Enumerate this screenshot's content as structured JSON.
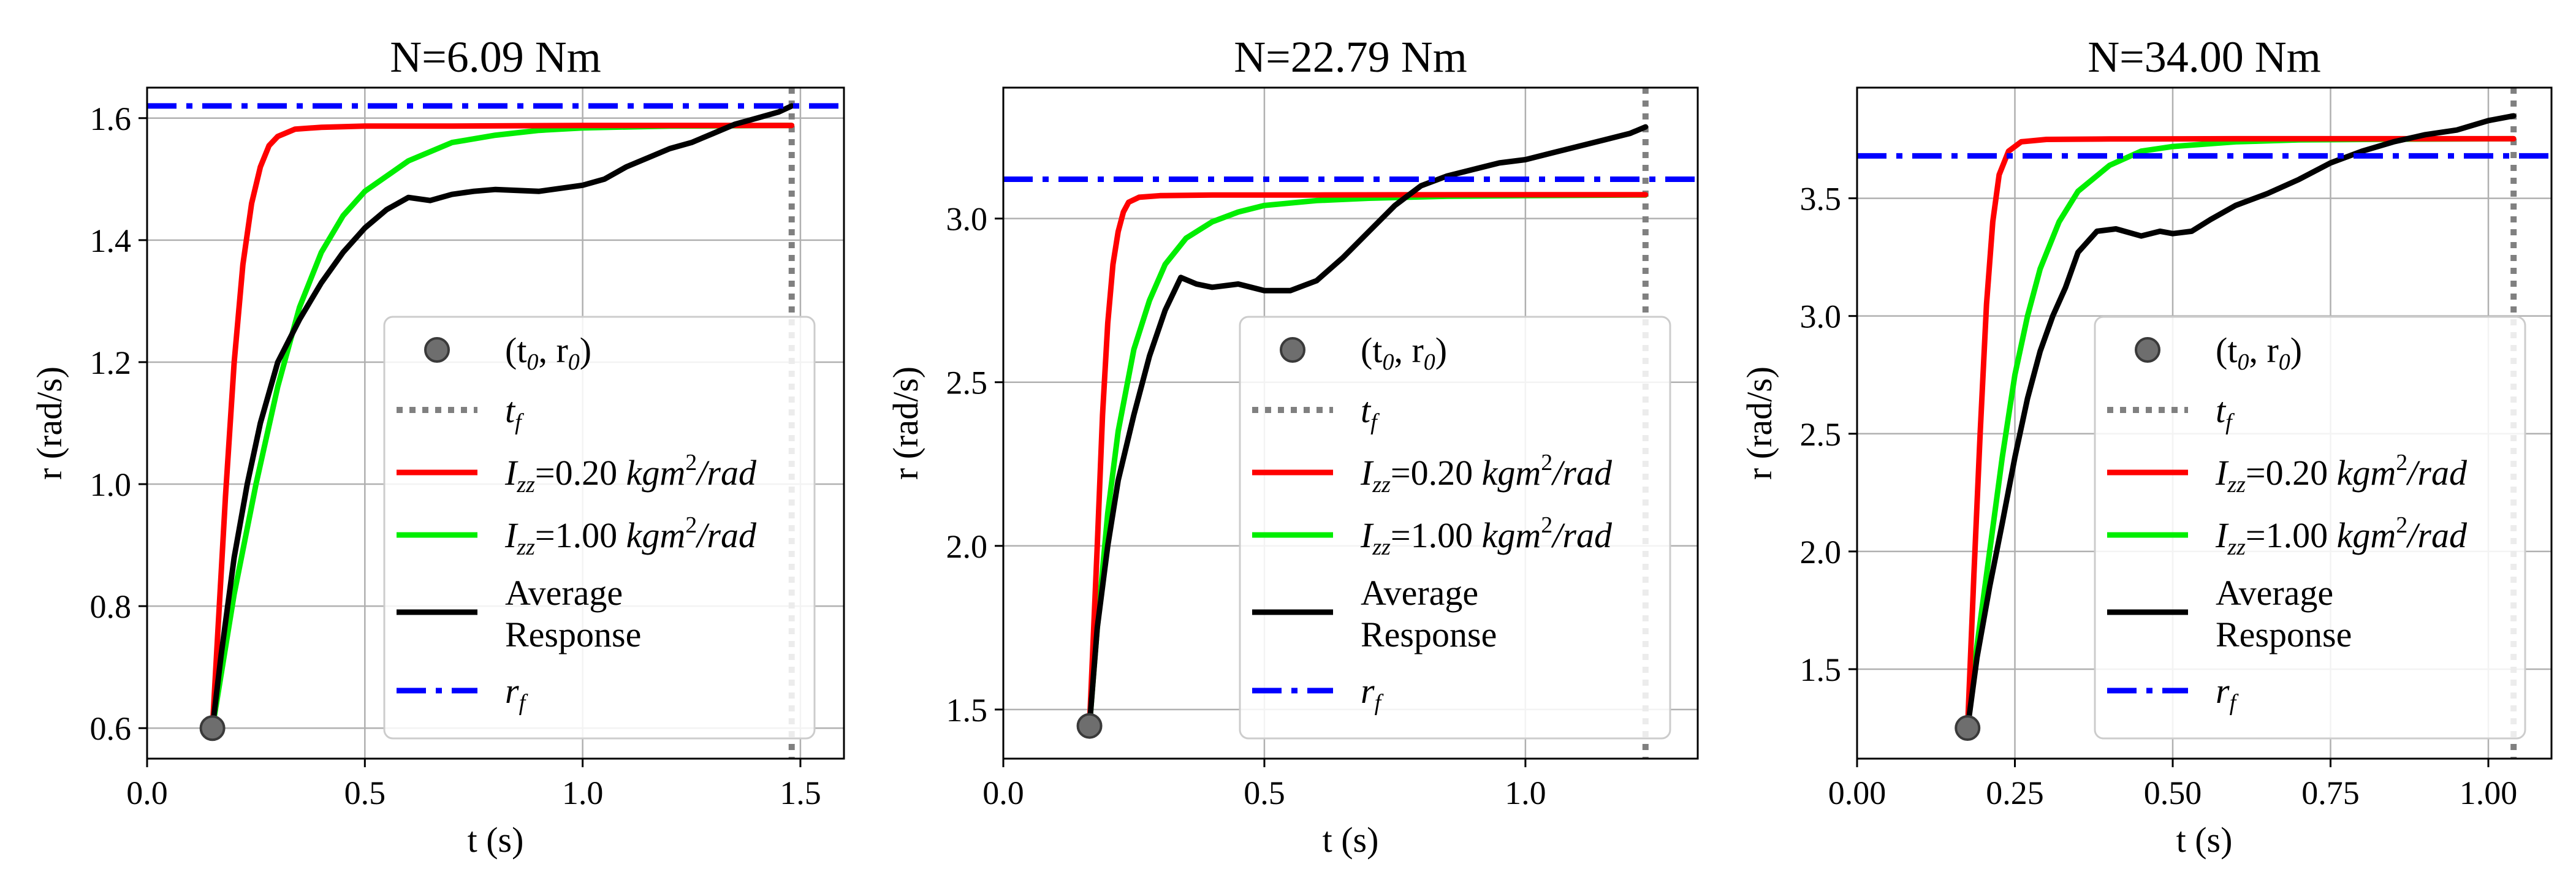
{
  "chart_data": [
    {
      "type": "line",
      "title": "N=6.09 Nm",
      "xlabel": "t (s)",
      "ylabel": "r (rad/s)",
      "xlim": [
        0.0,
        1.6
      ],
      "ylim": [
        0.55,
        1.65
      ],
      "xticks": [
        0.0,
        0.5,
        1.0,
        1.5
      ],
      "xtick_labels": [
        "0.0",
        "0.5",
        "1.0",
        "1.5"
      ],
      "yticks": [
        0.6,
        0.8,
        1.0,
        1.2,
        1.4,
        1.6
      ],
      "ytick_labels": [
        "0.6",
        "0.8",
        "1.0",
        "1.2",
        "1.4",
        "1.6"
      ],
      "grid": true,
      "legend_position": "lower-right",
      "t0": 0.15,
      "r0": 0.6,
      "tf": 1.48,
      "rf": 1.62,
      "series": [
        {
          "name": "Izz=0.20 kgm2/rad",
          "color": "#ff0000",
          "x": [
            0.15,
            0.18,
            0.2,
            0.22,
            0.24,
            0.26,
            0.28,
            0.3,
            0.34,
            0.4,
            0.5,
            0.7,
            1.0,
            1.48
          ],
          "y": [
            0.6,
            0.98,
            1.2,
            1.36,
            1.46,
            1.52,
            1.555,
            1.57,
            1.582,
            1.585,
            1.587,
            1.587,
            1.588,
            1.588
          ]
        },
        {
          "name": "Izz=1.00 kgm2/rad",
          "color": "#00ee00",
          "x": [
            0.15,
            0.2,
            0.25,
            0.3,
            0.35,
            0.4,
            0.45,
            0.5,
            0.6,
            0.7,
            0.8,
            0.9,
            1.0,
            1.2,
            1.48
          ],
          "y": [
            0.6,
            0.82,
            1.0,
            1.16,
            1.29,
            1.38,
            1.44,
            1.48,
            1.53,
            1.56,
            1.572,
            1.58,
            1.584,
            1.587,
            1.588
          ]
        },
        {
          "name": "Average Response",
          "color": "#000000",
          "x": [
            0.15,
            0.17,
            0.2,
            0.23,
            0.26,
            0.3,
            0.35,
            0.4,
            0.45,
            0.5,
            0.55,
            0.6,
            0.65,
            0.7,
            0.75,
            0.8,
            0.9,
            1.0,
            1.05,
            1.1,
            1.15,
            1.2,
            1.25,
            1.3,
            1.35,
            1.4,
            1.45,
            1.48
          ],
          "y": [
            0.6,
            0.72,
            0.88,
            1.0,
            1.1,
            1.2,
            1.27,
            1.33,
            1.38,
            1.42,
            1.45,
            1.47,
            1.465,
            1.475,
            1.48,
            1.483,
            1.48,
            1.49,
            1.5,
            1.52,
            1.535,
            1.55,
            1.56,
            1.575,
            1.59,
            1.6,
            1.61,
            1.62
          ]
        }
      ],
      "hline_color": "#0000ff",
      "marker_color": "#6e6e6e"
    },
    {
      "type": "line",
      "title": "N=22.79 Nm",
      "xlabel": "t (s)",
      "ylabel": "r (rad/s)",
      "xlim": [
        0.0,
        1.33
      ],
      "ylim": [
        1.35,
        3.4
      ],
      "xticks": [
        0.0,
        0.5,
        1.0
      ],
      "xtick_labels": [
        "0.0",
        "0.5",
        "1.0"
      ],
      "yticks": [
        1.5,
        2.0,
        2.5,
        3.0
      ],
      "ytick_labels": [
        "1.5",
        "2.0",
        "2.5",
        "3.0"
      ],
      "grid": true,
      "legend_position": "lower-right",
      "t0": 0.165,
      "r0": 1.45,
      "tf": 1.23,
      "rf": 3.12,
      "series": [
        {
          "name": "Izz=0.20 kgm2/rad",
          "color": "#ff0000",
          "x": [
            0.165,
            0.18,
            0.19,
            0.2,
            0.21,
            0.22,
            0.23,
            0.24,
            0.26,
            0.3,
            0.4,
            0.6,
            0.9,
            1.23
          ],
          "y": [
            1.45,
            2.0,
            2.4,
            2.68,
            2.86,
            2.96,
            3.02,
            3.05,
            3.065,
            3.07,
            3.072,
            3.072,
            3.073,
            3.073
          ]
        },
        {
          "name": "Izz=1.00 kgm2/rad",
          "color": "#00ee00",
          "x": [
            0.165,
            0.18,
            0.2,
            0.22,
            0.25,
            0.28,
            0.31,
            0.35,
            0.4,
            0.45,
            0.5,
            0.6,
            0.7,
            0.85,
            1.0,
            1.23
          ],
          "y": [
            1.45,
            1.75,
            2.1,
            2.35,
            2.6,
            2.75,
            2.86,
            2.94,
            2.99,
            3.02,
            3.04,
            3.055,
            3.062,
            3.068,
            3.07,
            3.072
          ]
        },
        {
          "name": "Average Response",
          "color": "#000000",
          "x": [
            0.165,
            0.18,
            0.2,
            0.22,
            0.25,
            0.28,
            0.31,
            0.34,
            0.37,
            0.4,
            0.45,
            0.5,
            0.55,
            0.6,
            0.65,
            0.7,
            0.75,
            0.8,
            0.85,
            0.9,
            0.95,
            1.0,
            1.05,
            1.1,
            1.15,
            1.2,
            1.23
          ],
          "y": [
            1.45,
            1.75,
            2.0,
            2.2,
            2.4,
            2.58,
            2.72,
            2.82,
            2.8,
            2.79,
            2.8,
            2.78,
            2.78,
            2.81,
            2.88,
            2.96,
            3.04,
            3.1,
            3.13,
            3.15,
            3.17,
            3.18,
            3.2,
            3.22,
            3.24,
            3.26,
            3.28
          ]
        }
      ],
      "hline_color": "#0000ff",
      "marker_color": "#6e6e6e"
    },
    {
      "type": "line",
      "title": "N=34.00 Nm",
      "xlabel": "t (s)",
      "ylabel": "r (rad/s)",
      "xlim": [
        0.0,
        1.1
      ],
      "ylim": [
        1.12,
        3.97
      ],
      "xticks": [
        0.0,
        0.25,
        0.5,
        0.75,
        1.0
      ],
      "xtick_labels": [
        "0.00",
        "0.25",
        "0.50",
        "0.75",
        "1.00"
      ],
      "yticks": [
        1.5,
        2.0,
        2.5,
        3.0,
        3.5
      ],
      "ytick_labels": [
        "1.5",
        "2.0",
        "2.5",
        "3.0",
        "3.5"
      ],
      "grid": true,
      "legend_position": "lower-right",
      "t0": 0.175,
      "r0": 1.25,
      "tf": 1.04,
      "rf": 3.68,
      "series": [
        {
          "name": "Izz=0.20 kgm2/rad",
          "color": "#ff0000",
          "x": [
            0.175,
            0.185,
            0.195,
            0.205,
            0.215,
            0.225,
            0.24,
            0.26,
            0.3,
            0.4,
            0.6,
            0.8,
            1.04
          ],
          "y": [
            1.25,
            1.9,
            2.5,
            3.05,
            3.4,
            3.6,
            3.7,
            3.74,
            3.75,
            3.752,
            3.753,
            3.753,
            3.753
          ]
        },
        {
          "name": "Izz=1.00 kgm2/rad",
          "color": "#00ee00",
          "x": [
            0.175,
            0.19,
            0.21,
            0.23,
            0.25,
            0.27,
            0.29,
            0.32,
            0.35,
            0.4,
            0.45,
            0.5,
            0.6,
            0.7,
            0.85,
            1.04
          ],
          "y": [
            1.25,
            1.6,
            2.0,
            2.4,
            2.75,
            3.0,
            3.2,
            3.4,
            3.53,
            3.64,
            3.7,
            3.72,
            3.74,
            3.748,
            3.751,
            3.753
          ]
        },
        {
          "name": "Average Response",
          "color": "#000000",
          "x": [
            0.175,
            0.19,
            0.21,
            0.23,
            0.25,
            0.27,
            0.29,
            0.31,
            0.33,
            0.35,
            0.38,
            0.41,
            0.45,
            0.48,
            0.5,
            0.53,
            0.56,
            0.6,
            0.65,
            0.7,
            0.75,
            0.8,
            0.85,
            0.9,
            0.95,
            1.0,
            1.04
          ],
          "y": [
            1.25,
            1.55,
            1.85,
            2.12,
            2.4,
            2.65,
            2.85,
            3.0,
            3.12,
            3.27,
            3.36,
            3.37,
            3.34,
            3.36,
            3.35,
            3.36,
            3.41,
            3.47,
            3.52,
            3.58,
            3.65,
            3.7,
            3.74,
            3.77,
            3.79,
            3.83,
            3.85
          ]
        }
      ],
      "hline_color": "#0000ff",
      "marker_color": "#6e6e6e"
    }
  ],
  "legend": {
    "marker_label": "(t",
    "marker_label_sub0": "0",
    "marker_label_mid": ", r",
    "marker_label_sub1": "0",
    "marker_label_end": ")",
    "tf_label": "t",
    "tf_sub": "f",
    "izz_symbol": "I",
    "izz_sub": "zz",
    "izz020_value": "=0.20 ",
    "izz100_value": "=1.00 ",
    "izz_unit": "kgm",
    "izz_unit_sup": "2",
    "izz_unit_end": "/rad",
    "avg_line1": "Average",
    "avg_line2": "Response",
    "rf_label": "r",
    "rf_sub": "f"
  }
}
